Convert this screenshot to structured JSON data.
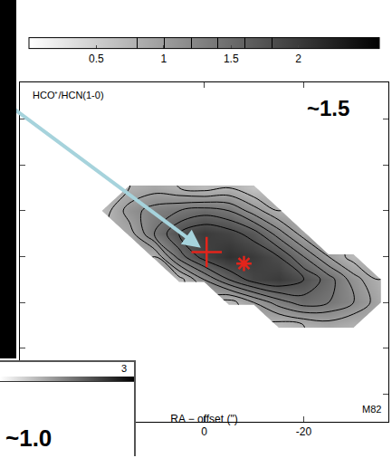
{
  "chart_data": {
    "type": "contour",
    "x_label": "RA − offset (\")",
    "xlim": [
      37,
      -37
    ],
    "xticks": [
      0,
      -20
    ],
    "ylim": [
      -36,
      38
    ],
    "yticks": [
      -30,
      -20,
      -10,
      0,
      10,
      20,
      30
    ],
    "tick_labels": "x",
    "grid": false,
    "x": [
      30,
      25,
      20,
      15,
      10,
      5,
      0,
      -5,
      -10,
      -15,
      -20,
      -25,
      -30,
      -35,
      -40
    ],
    "y": [
      -25,
      -20,
      -15,
      -10,
      -5,
      0,
      5,
      10,
      15,
      20,
      25
    ],
    "z": [
      [
        null,
        null,
        null,
        null,
        null,
        null,
        null,
        null,
        null,
        null,
        null,
        null,
        null,
        null,
        null
      ],
      [
        null,
        null,
        null,
        null,
        null,
        null,
        null,
        null,
        null,
        null,
        null,
        null,
        null,
        null,
        null
      ],
      [
        null,
        null,
        null,
        null,
        null,
        null,
        null,
        null,
        null,
        0.7,
        0.8,
        0.9,
        0.8,
        null,
        null
      ],
      [
        null,
        null,
        null,
        null,
        null,
        null,
        null,
        0.7,
        1.0,
        1.3,
        1.5,
        1.4,
        1.2,
        0.9,
        null
      ],
      [
        null,
        null,
        null,
        null,
        null,
        0.7,
        1.2,
        1.6,
        1.9,
        2.0,
        1.8,
        1.5,
        1.1,
        0.8,
        null
      ],
      [
        null,
        null,
        null,
        null,
        0.8,
        1.5,
        1.9,
        2.1,
        2.0,
        1.8,
        1.4,
        1.0,
        0.7,
        null,
        null
      ],
      [
        null,
        null,
        null,
        0.9,
        1.4,
        1.8,
        2.0,
        1.9,
        1.7,
        1.3,
        0.9,
        null,
        null,
        null,
        null
      ],
      [
        null,
        null,
        0.7,
        1.1,
        1.3,
        1.4,
        1.5,
        1.4,
        1.1,
        0.8,
        null,
        null,
        null,
        null,
        null
      ],
      [
        null,
        null,
        null,
        0.8,
        0.9,
        0.8,
        0.7,
        0.8,
        0.6,
        null,
        null,
        null,
        null,
        null,
        null
      ],
      [
        null,
        null,
        null,
        null,
        null,
        null,
        null,
        null,
        null,
        null,
        null,
        null,
        null,
        null,
        null
      ],
      [
        null,
        null,
        null,
        null,
        null,
        null,
        null,
        null,
        null,
        null,
        null,
        null,
        null,
        null,
        null
      ]
    ],
    "contour_levels": [
      0.8,
      1.0,
      1.2,
      1.4,
      1.6,
      1.8
    ],
    "colorbar": {
      "range": [
        0,
        2.6
      ],
      "ticks": [
        0.5,
        1,
        1.5,
        2
      ]
    },
    "points": [
      {
        "marker": "cross",
        "x": -0.5,
        "y": 1,
        "color": "#e3241b"
      },
      {
        "marker": "asterisk",
        "x": -8,
        "y": -1.5,
        "color": "#e3241b"
      }
    ],
    "annotations": [
      {
        "text": "HCO⁺/HCN(1-0)"
      },
      {
        "text": "~1.5"
      },
      {
        "text": "M82"
      }
    ],
    "inset": {
      "colorbar_tick_label": "3",
      "label": "~1.0"
    }
  }
}
